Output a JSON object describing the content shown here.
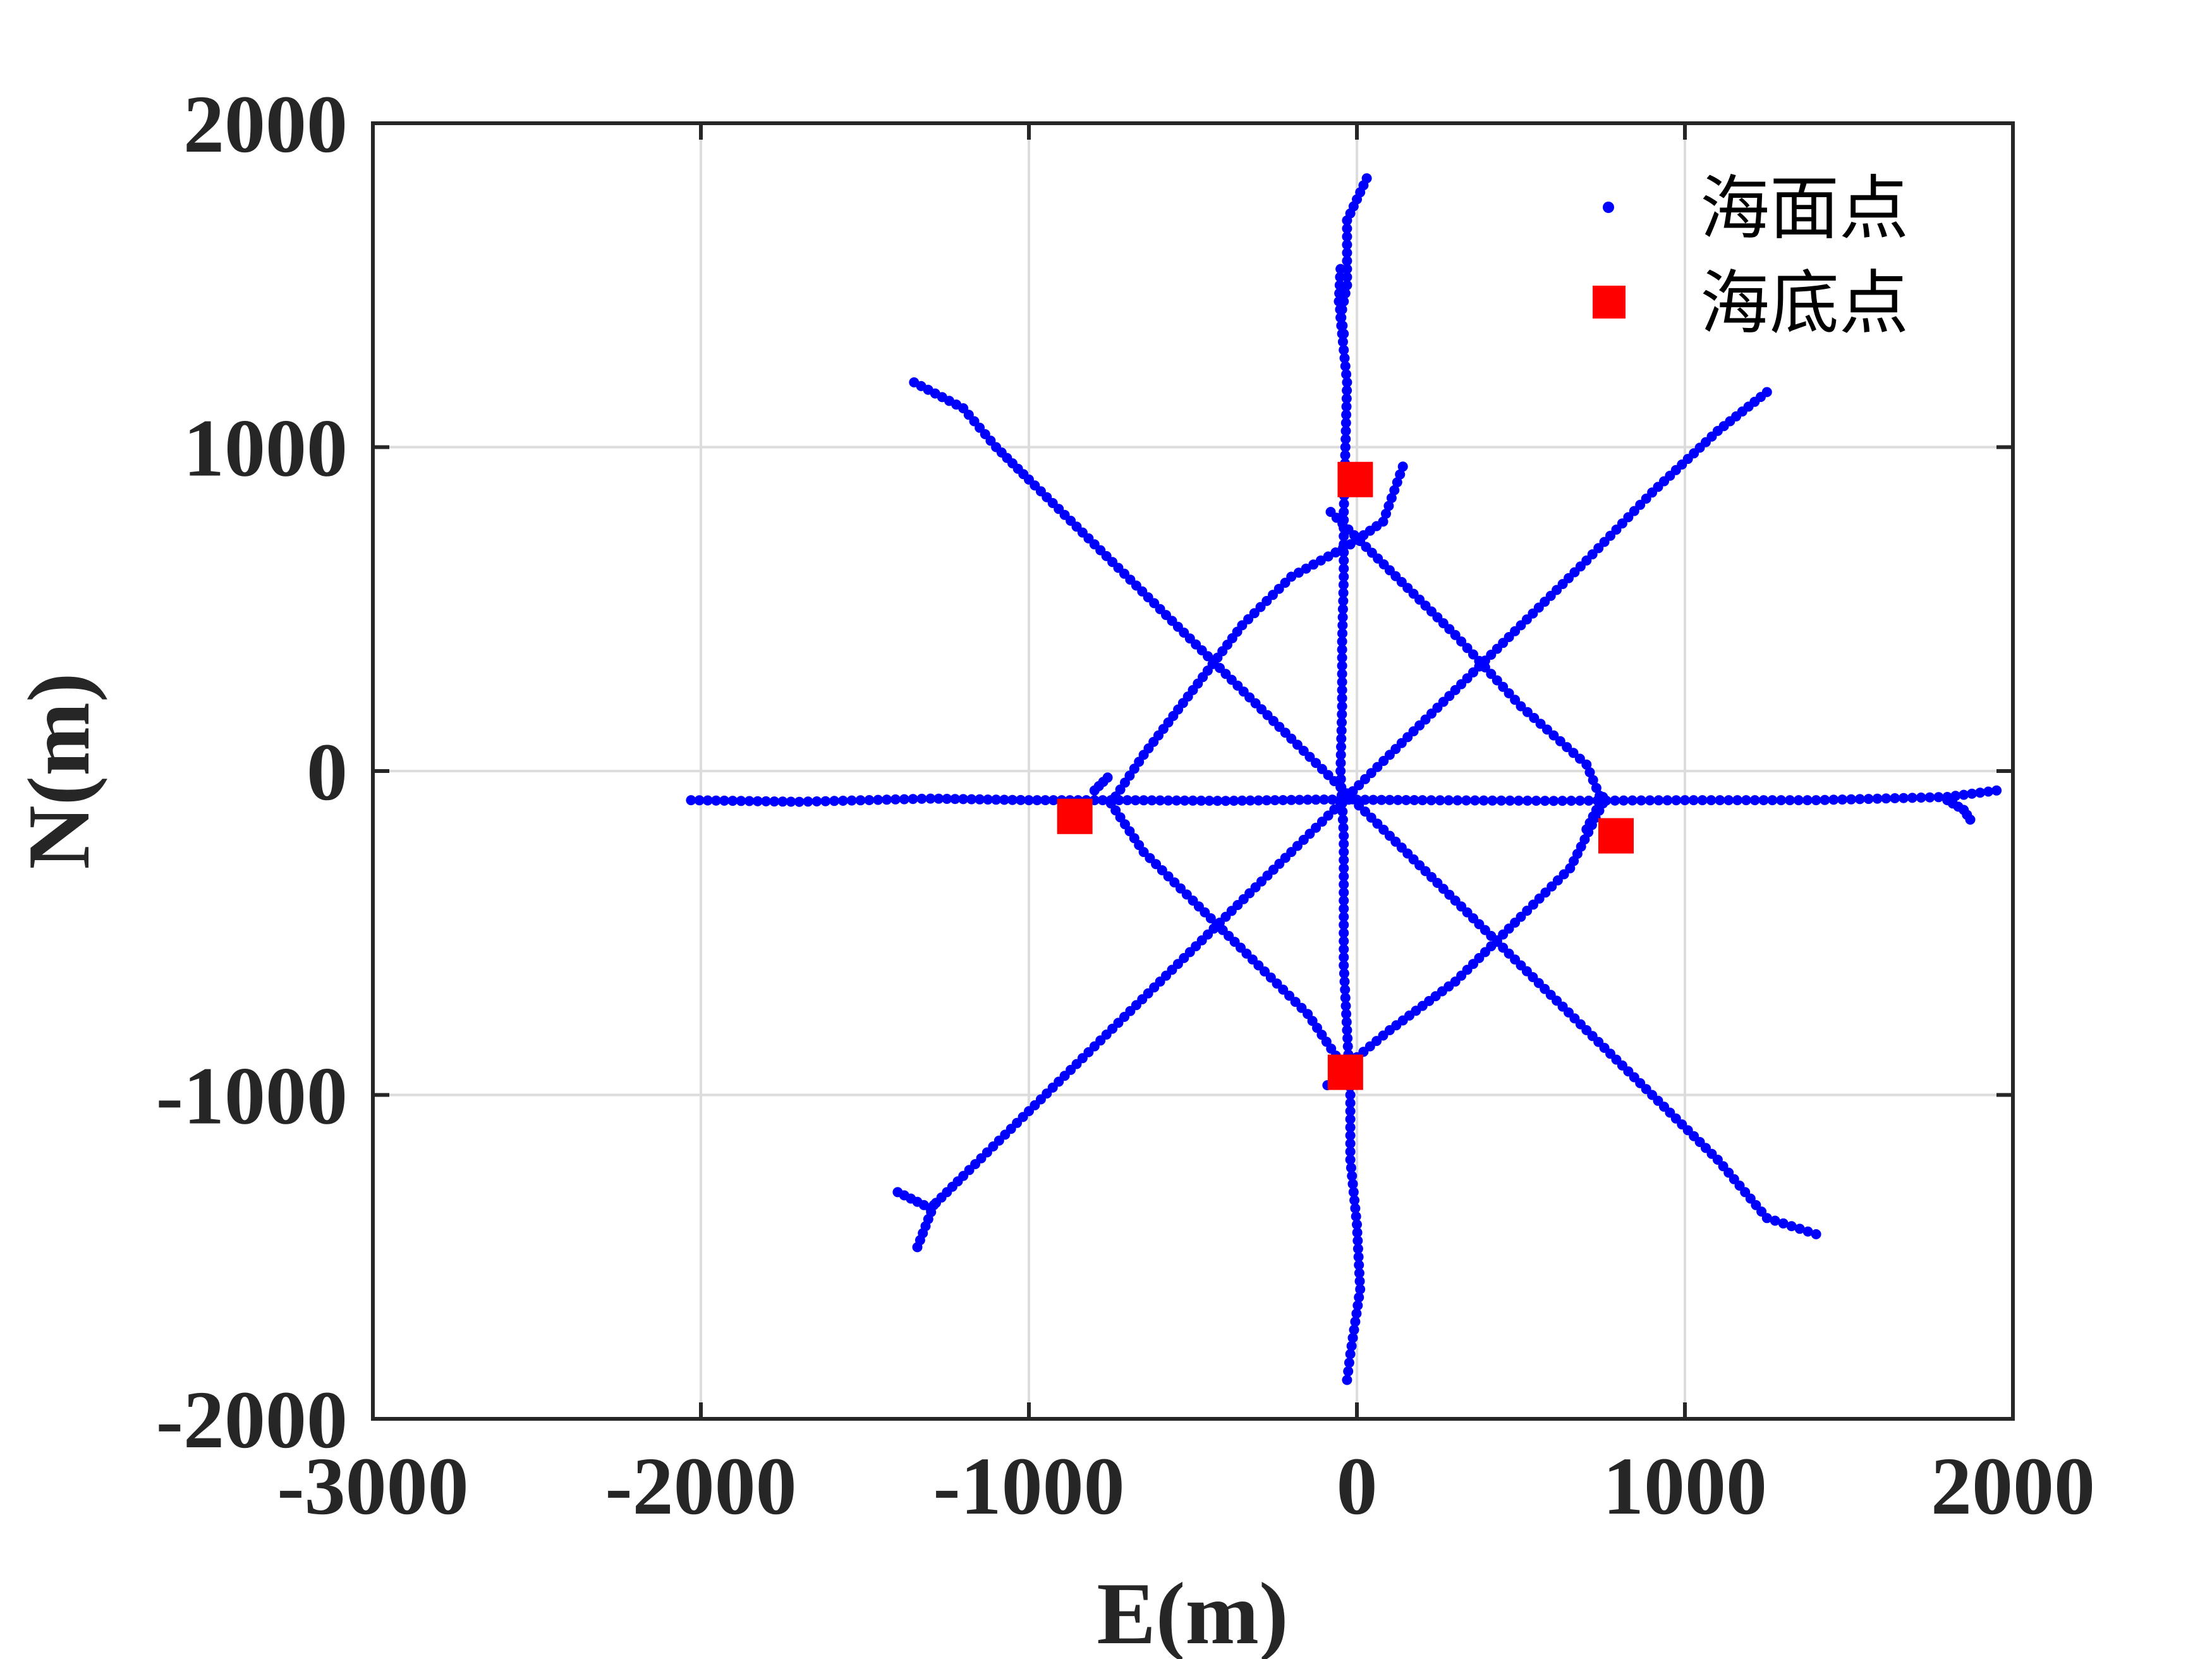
{
  "chart_data": {
    "type": "scatter",
    "xlabel": "E(m)",
    "ylabel": "N(m)",
    "xlim": [
      -3000,
      2000
    ],
    "ylim": [
      -2000,
      2000
    ],
    "xticks": [
      "-3000",
      "-2000",
      "-1000",
      "0",
      "1000",
      "2000"
    ],
    "yticks": [
      "-2000",
      "-1000",
      "0",
      "1000",
      "2000"
    ],
    "grid": true,
    "legend_position": "top-right",
    "legend": {
      "surface_label": "海面点",
      "seabed_label": "海底点"
    },
    "colors": {
      "surface": "#0000ff",
      "seabed": "#ff0000",
      "axis": "#262626",
      "grid": "#dcdcdc"
    },
    "series": [
      {
        "name": "海面点",
        "marker": "dot",
        "tracks": [
          [
            [
              -2030,
              -90
            ],
            [
              -1700,
              -95
            ],
            [
              -1300,
              -85
            ],
            [
              -1000,
              -90
            ],
            [
              -700,
              -90
            ],
            [
              -400,
              -92
            ],
            [
              -100,
              -88
            ],
            [
              200,
              -90
            ],
            [
              600,
              -92
            ],
            [
              1000,
              -90
            ],
            [
              1400,
              -90
            ],
            [
              1800,
              -80
            ],
            [
              1950,
              -60
            ]
          ],
          [
            [
              1800,
              -90
            ],
            [
              1850,
              -120
            ],
            [
              1870,
              -150
            ]
          ],
          [
            [
              30,
              1830
            ],
            [
              -30,
              1700
            ],
            [
              -30,
              1500
            ],
            [
              -50,
              1400
            ],
            [
              -30,
              1200
            ],
            [
              -35,
              1000
            ],
            [
              -40,
              800
            ],
            [
              -40,
              600
            ],
            [
              -45,
              400
            ],
            [
              -45,
              200
            ],
            [
              -50,
              0
            ],
            [
              -40,
              -200
            ],
            [
              -40,
              -400
            ],
            [
              -40,
              -600
            ],
            [
              -30,
              -800
            ],
            [
              -20,
              -1000
            ],
            [
              -20,
              -1200
            ],
            [
              0,
              -1400
            ],
            [
              10,
              -1600
            ],
            [
              -20,
              -1800
            ],
            [
              -30,
              -1880
            ]
          ],
          [
            [
              -50,
              1550
            ],
            [
              -55,
              1450
            ],
            [
              -40,
              1350
            ]
          ],
          [
            [
              -1350,
              1200
            ],
            [
              -1200,
              1120
            ],
            [
              -1100,
              1000
            ],
            [
              -1000,
              900
            ],
            [
              -800,
              700
            ],
            [
              -600,
              500
            ],
            [
              -400,
              300
            ],
            [
              -200,
              100
            ],
            [
              -50,
              -50
            ],
            [
              100,
              -200
            ],
            [
              300,
              -400
            ],
            [
              500,
              -600
            ],
            [
              700,
              -800
            ],
            [
              900,
              -1000
            ],
            [
              1100,
              -1200
            ],
            [
              1250,
              -1380
            ],
            [
              1400,
              -1430
            ]
          ],
          [
            [
              1250,
              1170
            ],
            [
              1100,
              1050
            ],
            [
              900,
              860
            ],
            [
              700,
              650
            ],
            [
              500,
              450
            ],
            [
              300,
              250
            ],
            [
              100,
              50
            ],
            [
              -50,
              -100
            ],
            [
              -200,
              -250
            ],
            [
              -400,
              -450
            ],
            [
              -600,
              -650
            ],
            [
              -800,
              -850
            ],
            [
              -1000,
              -1050
            ],
            [
              -1200,
              -1250
            ],
            [
              -1300,
              -1350
            ],
            [
              -1400,
              -1300
            ]
          ],
          [
            [
              -1290,
              -1340
            ],
            [
              -1340,
              -1470
            ]
          ],
          [
            [
              -20,
              700
            ],
            [
              -200,
              600
            ],
            [
              -350,
              450
            ],
            [
              -500,
              250
            ],
            [
              -650,
              50
            ],
            [
              -750,
              -100
            ],
            [
              -650,
              -250
            ],
            [
              -500,
              -400
            ],
            [
              -300,
              -600
            ],
            [
              -150,
              -750
            ],
            [
              -50,
              -900
            ],
            [
              -30,
              -960
            ]
          ],
          [
            [
              -80,
              800
            ],
            [
              100,
              620
            ],
            [
              300,
              420
            ],
            [
              500,
              200
            ],
            [
              700,
              20
            ],
            [
              750,
              -100
            ],
            [
              650,
              -300
            ],
            [
              500,
              -450
            ],
            [
              300,
              -650
            ],
            [
              100,
              -800
            ],
            [
              -20,
              -900
            ],
            [
              -90,
              -970
            ]
          ],
          [
            [
              -20,
              700
            ],
            [
              80,
              770
            ],
            [
              140,
              940
            ]
          ],
          [
            [
              -800,
              -60
            ],
            [
              -760,
              -20
            ]
          ],
          [
            [
              750,
              -80
            ],
            [
              700,
              -180
            ]
          ]
        ]
      },
      {
        "name": "海底点",
        "marker": "square",
        "points": [
          {
            "x": -5,
            "y": 900
          },
          {
            "x": -860,
            "y": -140
          },
          {
            "x": 790,
            "y": -200
          },
          {
            "x": -35,
            "y": -930
          }
        ]
      }
    ]
  }
}
